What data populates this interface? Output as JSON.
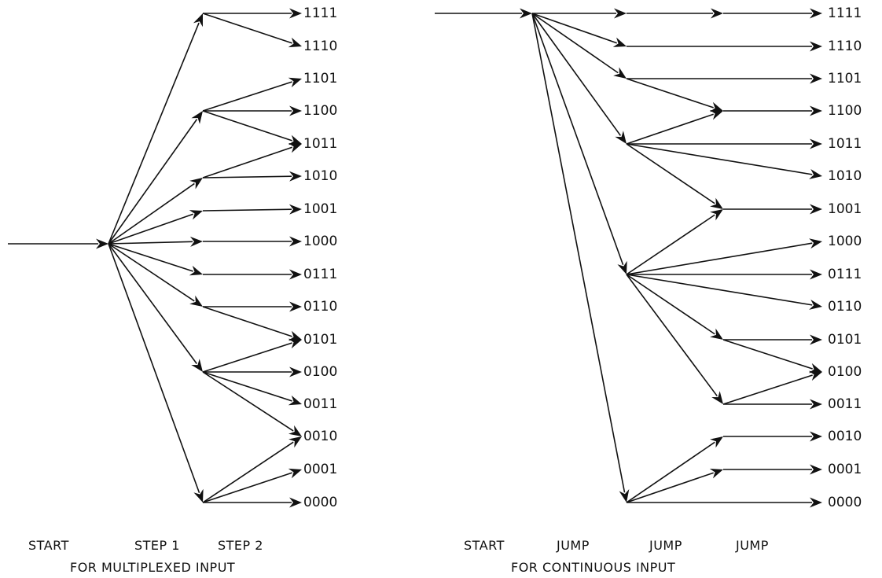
{
  "figures": [
    {
      "id": "multiplexed",
      "outputs": [
        "1111",
        "1110",
        "1101",
        "1100",
        "1011",
        "1010",
        "1001",
        "1000",
        "0111",
        "0110",
        "0101",
        "0100",
        "0011",
        "0010",
        "0001",
        "0000"
      ],
      "column_labels": [
        "START",
        "STEP 1",
        "STEP 2"
      ],
      "caption": "FOR MULTIPLEXED INPUT"
    },
    {
      "id": "continuous",
      "outputs": [
        "1111",
        "1110",
        "1101",
        "1100",
        "1011",
        "1010",
        "1001",
        "1000",
        "0111",
        "0110",
        "0101",
        "0100",
        "0011",
        "0010",
        "0001",
        "0000"
      ],
      "column_labels": [
        "START",
        "JUMP",
        "JUMP",
        "JUMP"
      ],
      "caption": "FOR CONTINUOUS INPUT"
    }
  ],
  "colors": {
    "ink": "#111111",
    "background": "#ffffff"
  }
}
